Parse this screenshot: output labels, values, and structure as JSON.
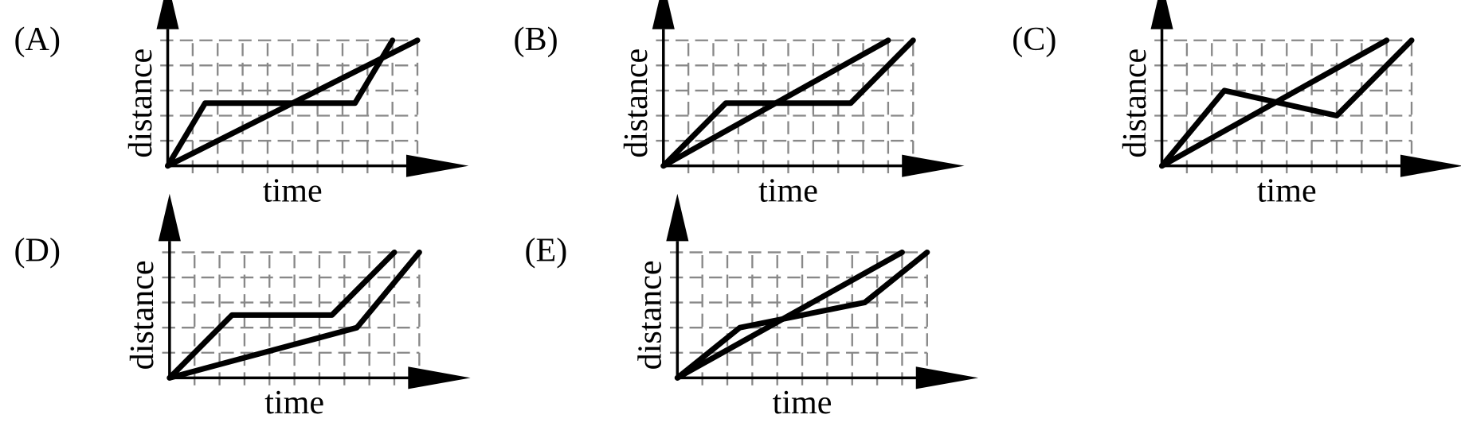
{
  "chart_data": [
    {
      "type": "line",
      "title": "(A)",
      "x_label": "time",
      "y_label": "distance",
      "xlim": [
        0,
        10
      ],
      "ylim": [
        0,
        5
      ],
      "grid": true,
      "series": [
        {
          "color": "#000000",
          "x": [
            0,
            1.5,
            7.5,
            9
          ],
          "values": [
            0,
            2.5,
            2.5,
            5
          ]
        },
        {
          "color": "#000000",
          "x": [
            0,
            10
          ],
          "values": [
            0,
            5
          ]
        }
      ]
    },
    {
      "type": "line",
      "title": "(B)",
      "x_label": "time",
      "y_label": "distance",
      "xlim": [
        0,
        10
      ],
      "ylim": [
        0,
        5
      ],
      "grid": true,
      "series": [
        {
          "color": "#000000",
          "x": [
            0,
            2.5,
            7.5,
            10
          ],
          "values": [
            0,
            2.5,
            2.5,
            5
          ]
        },
        {
          "color": "#000000",
          "x": [
            0,
            9
          ],
          "values": [
            0,
            5
          ]
        }
      ]
    },
    {
      "type": "line",
      "title": "(C)",
      "x_label": "time",
      "y_label": "distance",
      "xlim": [
        0,
        10
      ],
      "ylim": [
        0,
        5
      ],
      "grid": true,
      "series": [
        {
          "color": "#000000",
          "x": [
            0,
            2.5,
            7,
            10
          ],
          "values": [
            0,
            3,
            2,
            5
          ]
        },
        {
          "color": "#000000",
          "x": [
            0,
            9
          ],
          "values": [
            0,
            5
          ]
        }
      ]
    },
    {
      "type": "line",
      "title": "(D)",
      "x_label": "time",
      "y_label": "distance",
      "xlim": [
        0,
        10
      ],
      "ylim": [
        0,
        5
      ],
      "grid": true,
      "series": [
        {
          "color": "#000000",
          "x": [
            0,
            2.5,
            6.5,
            9
          ],
          "values": [
            0,
            2.5,
            2.5,
            5
          ]
        },
        {
          "color": "#000000",
          "x": [
            0,
            7.5,
            10
          ],
          "values": [
            0,
            2,
            5
          ]
        }
      ]
    },
    {
      "type": "line",
      "title": "(E)",
      "x_label": "time",
      "y_label": "distance",
      "xlim": [
        0,
        10
      ],
      "ylim": [
        0,
        5
      ],
      "grid": true,
      "series": [
        {
          "color": "#000000",
          "x": [
            0,
            2.5,
            7.5,
            10
          ],
          "values": [
            0,
            2,
            3,
            5
          ]
        },
        {
          "color": "#000000",
          "x": [
            0,
            9
          ],
          "values": [
            0,
            5
          ]
        }
      ]
    }
  ]
}
